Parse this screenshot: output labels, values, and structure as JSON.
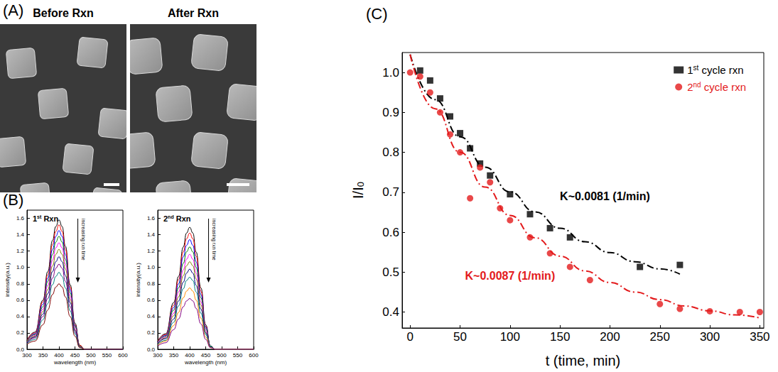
{
  "panel_labels": [
    "(A)",
    "(B)",
    "(C)"
  ],
  "panel_a": {
    "titles": [
      "Before Rxn",
      "After Rxn"
    ]
  },
  "chart_data": [
    {
      "type": "line",
      "title": "1st Rxn",
      "x_label": "wavelength (nm)",
      "y_label": "intensity(a.u.)",
      "annotations": [
        {
          "text": "increasing rxn time"
        }
      ],
      "x": [
        300,
        325,
        350,
        365,
        380,
        390,
        400,
        410,
        420,
        435,
        450,
        465,
        480,
        600
      ],
      "series": [
        {
          "color": "#000000",
          "values": [
            0.11,
            0.21,
            0.6,
            0.95,
            1.33,
            1.5,
            1.58,
            1.5,
            1.26,
            0.79,
            0.32,
            0.05,
            0,
            0
          ]
        },
        {
          "color": "#ff0000",
          "values": [
            0.11,
            0.2,
            0.58,
            0.91,
            1.28,
            1.44,
            1.52,
            1.44,
            1.22,
            0.76,
            0.3,
            0.05,
            0,
            0
          ]
        },
        {
          "color": "#0000ff",
          "values": [
            0.1,
            0.19,
            0.55,
            0.87,
            1.22,
            1.38,
            1.45,
            1.38,
            1.16,
            0.73,
            0.29,
            0.04,
            0,
            0
          ]
        },
        {
          "color": "#008000",
          "values": [
            0.1,
            0.18,
            0.52,
            0.83,
            1.16,
            1.31,
            1.38,
            1.31,
            1.1,
            0.69,
            0.28,
            0.04,
            0,
            0
          ]
        },
        {
          "color": "#ff00ff",
          "values": [
            0.09,
            0.17,
            0.49,
            0.78,
            1.09,
            1.24,
            1.3,
            1.24,
            1.04,
            0.65,
            0.26,
            0.04,
            0,
            0
          ]
        },
        {
          "color": "#808000",
          "values": [
            0.09,
            0.16,
            0.46,
            0.73,
            1.02,
            1.16,
            1.22,
            1.16,
            0.98,
            0.61,
            0.24,
            0.04,
            0,
            0
          ]
        },
        {
          "color": "#000080",
          "values": [
            0.08,
            0.15,
            0.43,
            0.68,
            0.95,
            1.07,
            1.13,
            1.07,
            0.9,
            0.57,
            0.23,
            0.03,
            0,
            0
          ]
        },
        {
          "color": "#800080",
          "values": [
            0.07,
            0.14,
            0.4,
            0.62,
            0.87,
            0.99,
            1.04,
            0.99,
            0.83,
            0.52,
            0.21,
            0.03,
            0,
            0
          ]
        },
        {
          "color": "#008080",
          "values": [
            0.07,
            0.12,
            0.36,
            0.56,
            0.79,
            0.89,
            0.94,
            0.89,
            0.75,
            0.47,
            0.19,
            0.03,
            0,
            0
          ]
        },
        {
          "color": "#800000",
          "values": [
            0.06,
            0.1,
            0.3,
            0.48,
            0.67,
            0.76,
            0.8,
            0.76,
            0.64,
            0.4,
            0.16,
            0.02,
            0,
            0
          ]
        }
      ],
      "xlim": [
        300,
        600
      ],
      "xticks": [
        300,
        350,
        400,
        450,
        500,
        550,
        600
      ],
      "ylim": [
        0,
        1.7
      ],
      "yticks": [
        {
          "value": 0,
          "label": "0.0"
        },
        0.2,
        0.4,
        0.6,
        0.8,
        {
          "value": 1,
          "label": "1.0"
        },
        1.2,
        1.4,
        1.6
      ],
      "grid": false
    },
    {
      "type": "line",
      "title": "2nd Rxn",
      "x_label": "wavelength (nm)",
      "y_label": "intensity(a.u.)",
      "annotations": [
        {
          "text": "increasing rxn time"
        }
      ],
      "x": [
        300,
        325,
        350,
        365,
        380,
        390,
        400,
        410,
        420,
        435,
        450,
        465,
        480,
        600
      ],
      "series": [
        {
          "color": "#000000",
          "values": [
            0.1,
            0.19,
            0.57,
            0.89,
            1.25,
            1.42,
            1.49,
            1.42,
            1.19,
            0.75,
            0.3,
            0.04,
            0,
            0
          ]
        },
        {
          "color": "#ff0000",
          "values": [
            0.1,
            0.18,
            0.54,
            0.85,
            1.19,
            1.35,
            1.42,
            1.35,
            1.14,
            0.71,
            0.28,
            0.04,
            0,
            0
          ]
        },
        {
          "color": "#0000ff",
          "values": [
            0.09,
            0.17,
            0.51,
            0.8,
            1.13,
            1.27,
            1.34,
            1.27,
            1.07,
            0.67,
            0.27,
            0.04,
            0,
            0
          ]
        },
        {
          "color": "#008000",
          "values": [
            0.09,
            0.16,
            0.48,
            0.75,
            1.05,
            1.19,
            1.25,
            1.19,
            1.0,
            0.63,
            0.25,
            0.04,
            0,
            0
          ]
        },
        {
          "color": "#ff00ff",
          "values": [
            0.08,
            0.15,
            0.44,
            0.7,
            0.97,
            1.1,
            1.16,
            1.1,
            0.93,
            0.58,
            0.23,
            0.03,
            0,
            0
          ]
        },
        {
          "color": "#808000",
          "values": [
            0.07,
            0.14,
            0.41,
            0.64,
            0.9,
            1.02,
            1.07,
            1.02,
            0.86,
            0.54,
            0.21,
            0.03,
            0,
            0
          ]
        },
        {
          "color": "#000080",
          "values": [
            0.07,
            0.13,
            0.37,
            0.59,
            0.82,
            0.93,
            0.98,
            0.93,
            0.78,
            0.49,
            0.2,
            0.03,
            0,
            0
          ]
        },
        {
          "color": "#008080",
          "values": [
            0.06,
            0.11,
            0.33,
            0.53,
            0.74,
            0.84,
            0.88,
            0.84,
            0.7,
            0.44,
            0.18,
            0.03,
            0,
            0
          ]
        },
        {
          "color": "#ff8c00",
          "values": [
            0.05,
            0.1,
            0.29,
            0.45,
            0.63,
            0.71,
            0.75,
            0.71,
            0.6,
            0.38,
            0.15,
            0.02,
            0,
            0
          ]
        },
        {
          "color": "#800080",
          "values": [
            0.04,
            0.08,
            0.24,
            0.37,
            0.52,
            0.59,
            0.62,
            0.59,
            0.5,
            0.31,
            0.12,
            0.02,
            0,
            0
          ]
        }
      ],
      "xlim": [
        300,
        600
      ],
      "xticks": [
        300,
        350,
        400,
        450,
        500,
        550,
        600
      ],
      "ylim": [
        0,
        1.7
      ],
      "yticks": [
        {
          "value": 0,
          "label": "0.0"
        },
        0.2,
        0.4,
        0.6,
        0.8,
        {
          "value": 1,
          "label": "1.0"
        },
        1.2,
        1.4,
        1.6
      ],
      "grid": false
    },
    {
      "type": "scatter",
      "x_label": "t (time, min)",
      "y_label": "I/I0",
      "legend": "upper right",
      "series": [
        {
          "name": "1st cycle rxn",
          "type": "scatter",
          "marker": "square",
          "color": "#000000",
          "x": [
            10,
            20,
            30,
            40,
            50,
            60,
            70,
            80,
            100,
            120,
            140,
            160,
            230,
            270
          ],
          "values": [
            1.005,
            0.98,
            0.935,
            0.89,
            0.848,
            0.81,
            0.772,
            0.742,
            0.695,
            0.645,
            0.61,
            0.587,
            0.513,
            0.518
          ]
        },
        {
          "name": "2nd cycle rxn",
          "type": "scatter",
          "marker": "circle",
          "color": "#e31a1c",
          "x": [
            0,
            10,
            20,
            30,
            40,
            50,
            60,
            70,
            80,
            90,
            100,
            120,
            140,
            160,
            180,
            250,
            270,
            300,
            330,
            350
          ],
          "values": [
            1.0,
            0.99,
            0.95,
            0.9,
            0.845,
            0.8,
            0.685,
            0.762,
            0.725,
            0.66,
            0.63,
            0.587,
            0.547,
            0.513,
            0.48,
            0.42,
            0.408,
            0.402,
            0.4,
            0.4
          ]
        },
        {
          "type": "line",
          "line_style": "dashdot",
          "color": "#000000",
          "x": [
            0,
            25,
            50,
            75,
            100,
            125,
            150,
            175,
            200,
            225,
            250,
            270
          ],
          "values": [
            1.045,
            0.932,
            0.839,
            0.763,
            0.701,
            0.651,
            0.61,
            0.576,
            0.549,
            0.526,
            0.508,
            0.495
          ]
        },
        {
          "type": "line",
          "line_style": "dashdot",
          "color": "#e31a1c",
          "x": [
            0,
            25,
            50,
            75,
            100,
            125,
            150,
            175,
            200,
            225,
            250,
            275,
            300,
            325,
            350
          ],
          "values": [
            1.045,
            0.909,
            0.8,
            0.713,
            0.642,
            0.586,
            0.54,
            0.503,
            0.474,
            0.45,
            0.431,
            0.415,
            0.403,
            0.393,
            0.385
          ]
        }
      ],
      "annotations": [
        {
          "text": "K~0.0081 (1/min)",
          "x": 195,
          "y": 0.69,
          "color": "#000000"
        },
        {
          "text": "K~0.0087 (1/min)",
          "x": 100,
          "y": 0.49,
          "color": "#e31a1c"
        }
      ],
      "xlim": [
        -8,
        354
      ],
      "xticks": [
        0,
        50,
        100,
        150,
        200,
        250,
        300,
        350
      ],
      "ylim": [
        0.36,
        1.05
      ],
      "yticks": [
        0.4,
        0.5,
        0.6,
        0.7,
        0.8,
        0.9,
        {
          "value": 1,
          "label": "1.0"
        }
      ],
      "grid": false
    }
  ]
}
